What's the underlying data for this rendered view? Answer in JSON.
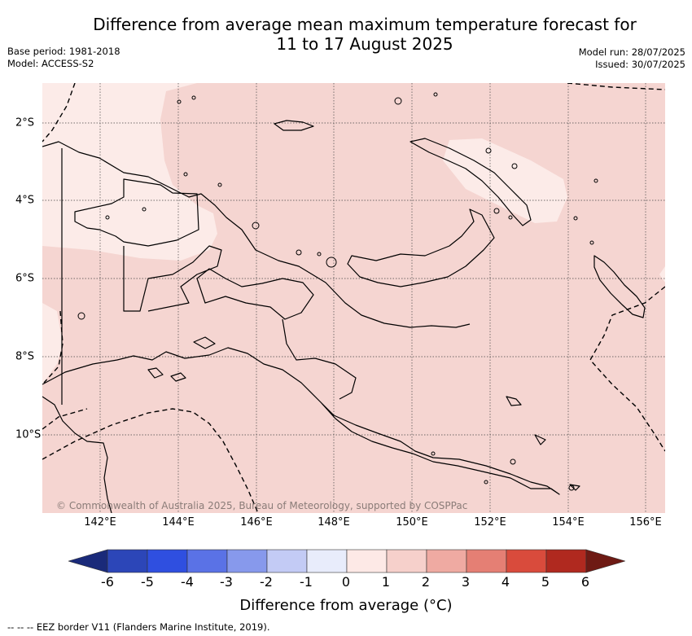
{
  "title_line1": "Difference from average mean maximum temperature forecast for",
  "title_line2": "11 to 17 August 2025",
  "base_period": "Base period: 1981-2018",
  "model": "Model: ACCESS-S2",
  "model_run": "Model run: 28/07/2025",
  "issued": "Issued: 30/07/2025",
  "lon_labels": [
    "142°E",
    "144°E",
    "146°E",
    "148°E",
    "150°E",
    "152°E",
    "154°E",
    "156°E"
  ],
  "lat_labels": [
    "2°S",
    "4°S",
    "6°S",
    "8°S",
    "10°S"
  ],
  "credit": "© Commonwealth of Australia 2025, Bureau of Meteorology, supported by COSPPac",
  "colorbar": {
    "ticks": [
      "-6",
      "-5",
      "-4",
      "-3",
      "-2",
      "-1",
      "0",
      "1",
      "2",
      "3",
      "4",
      "5",
      "6"
    ],
    "colors": [
      "#1a2a7a",
      "#2c46b8",
      "#2f4fe0",
      "#5a72e6",
      "#8799ec",
      "#c3cbf5",
      "#e8ecfb",
      "#fde9e6",
      "#f6d0cb",
      "#efaaa2",
      "#e57f74",
      "#d94b3c",
      "#b0291f",
      "#6e1a14"
    ],
    "title": "Difference from average (°C)"
  },
  "legend_text": "-- -- -- EEZ border V11 (Flanders Marine Institute, 2019).",
  "map_colors": {
    "main": "#f5d5d1",
    "light": "#fcebe8"
  }
}
